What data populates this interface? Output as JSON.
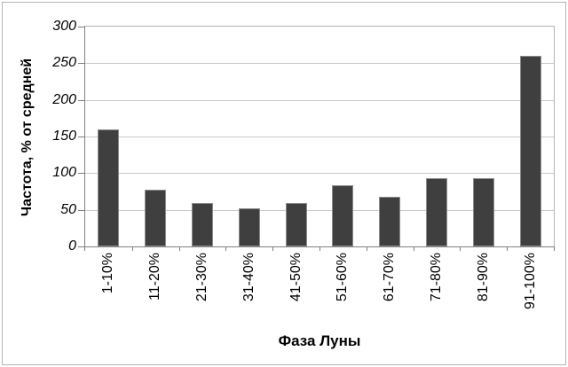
{
  "chart_data": {
    "type": "bar",
    "title": "",
    "xlabel": "Фаза Луны",
    "ylabel": "Частота, % от средней",
    "categories": [
      "1-10%",
      "11-20%",
      "21-30%",
      "31-40%",
      "41-50%",
      "51-60%",
      "61-70%",
      "71-80%",
      "81-90%",
      "91-100%"
    ],
    "values": [
      160,
      77,
      59,
      52,
      59,
      84,
      68,
      93,
      93,
      260
    ],
    "ylim": [
      0,
      300
    ],
    "yticks": [
      0,
      50,
      100,
      150,
      200,
      250,
      300
    ],
    "grid": true,
    "legend": false,
    "bar_color": "#3f3f3f",
    "bar_border_color": "#8c8c8c",
    "gridline_color": "#c9c9c9",
    "axis_color": "#808080",
    "plot_border_color": "#b3b3b3",
    "text_color": "#000000",
    "background_color": "#ffffff"
  }
}
